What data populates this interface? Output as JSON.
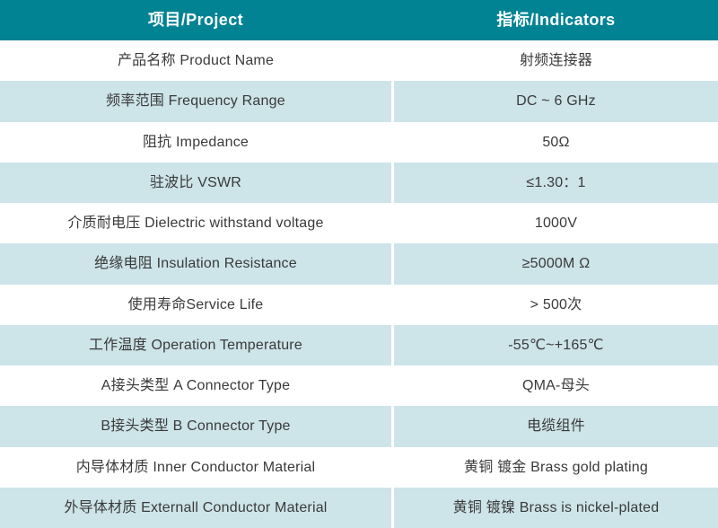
{
  "colors": {
    "header_bg": "#028394",
    "header_text": "#ffffff",
    "row_bg": "#ffffff",
    "alt_row_bg": "#cde4e9",
    "body_text": "#3a3a3a",
    "divider": "#ffffff"
  },
  "header": {
    "project": "项目/Project",
    "indicators": "指标/Indicators"
  },
  "rows": [
    {
      "name": "产品名称 Product Name",
      "value": "射频连接器"
    },
    {
      "name": "频率范围 Frequency Range",
      "value": "DC ~ 6 GHz"
    },
    {
      "name": "阻抗 Impedance",
      "value": "50Ω"
    },
    {
      "name": "驻波比 VSWR",
      "value": "≤1.30：1"
    },
    {
      "name": "介质耐电压 Dielectric withstand voltage",
      "value": "1000V"
    },
    {
      "name": "绝缘电阻 Insulation Resistance",
      "value": "≥5000M Ω"
    },
    {
      "name": "使用寿命Service Life",
      "value": "> 500次"
    },
    {
      "name": "工作温度 Operation Temperature",
      "value": "-55℃~+165℃"
    },
    {
      "name": "A接头类型 A Connector Type",
      "value": "QMA-母头"
    },
    {
      "name": "B接头类型 B Connector Type",
      "value": "电缆组件"
    },
    {
      "name": "内导体材质 Inner Conductor Material",
      "value": "黄铜 镀金 Brass gold plating"
    },
    {
      "name": "外导体材质 Externall Conductor Material",
      "value": "黄铜 镀镍 Brass is nickel-plated"
    }
  ]
}
